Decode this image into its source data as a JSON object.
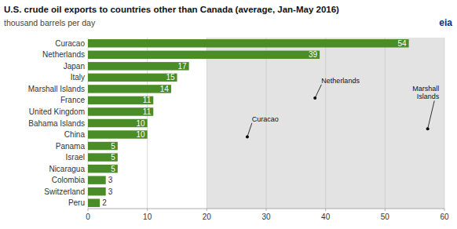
{
  "chart_data": {
    "type": "bar",
    "orientation": "horizontal",
    "title": "U.S. crude oil exports to countries other than Canada (average, Jan-May 2016)",
    "subtitle": "thousand barrels per day",
    "categories": [
      "Curacao",
      "Netherlands",
      "Japan",
      "Italy",
      "Marshall Islands",
      "France",
      "United Kingdom",
      "Bahama Islands",
      "China",
      "Panama",
      "Israel",
      "Nicaragua",
      "Colombia",
      "Switzerland",
      "Peru"
    ],
    "values": [
      54,
      39,
      17,
      15,
      14,
      11,
      11,
      10,
      10,
      5,
      5,
      5,
      3,
      3,
      2
    ],
    "color": "#4a8c28",
    "xlim": [
      0,
      60
    ],
    "xticks": [
      0,
      10,
      20,
      30,
      40,
      50,
      60
    ],
    "grid": true,
    "data_labels": true,
    "annotations": [
      "Netherlands",
      "Curacao",
      "Marshall\nIslands",
      "eia"
    ]
  }
}
